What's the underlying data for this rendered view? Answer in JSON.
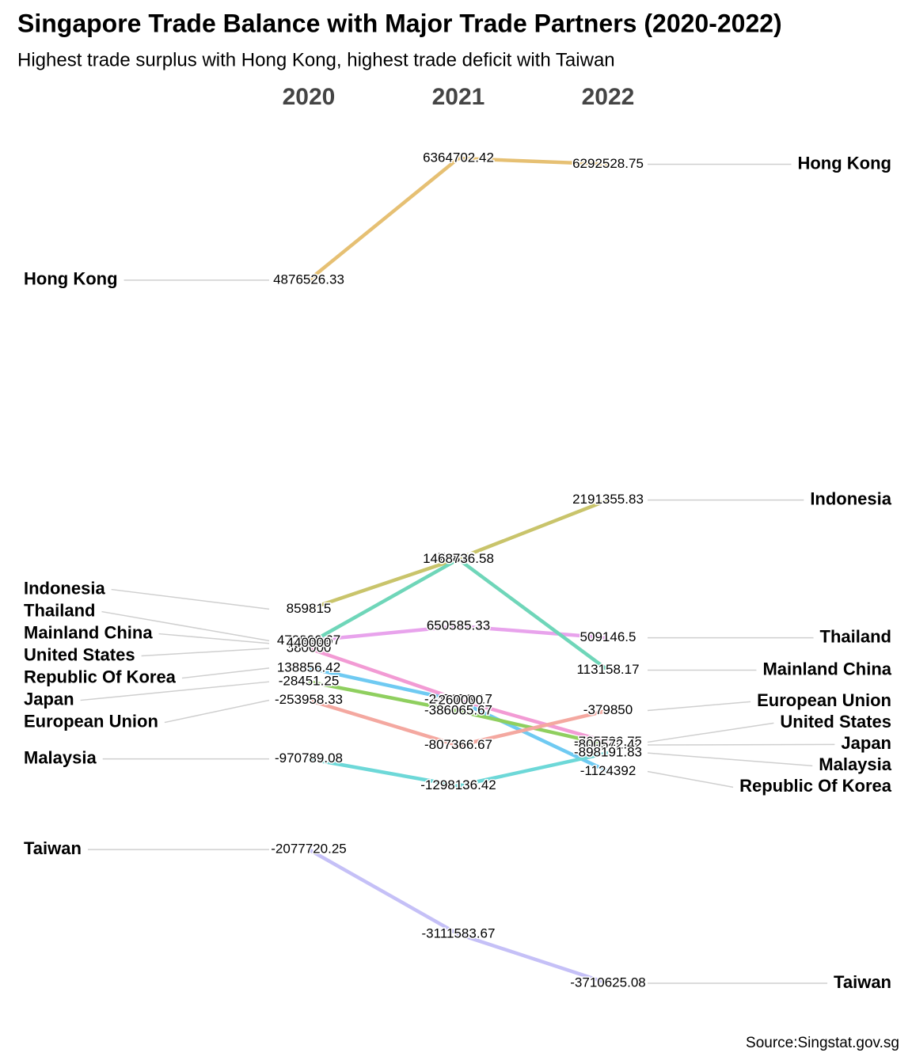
{
  "chart_data": {
    "type": "slope",
    "title": "Singapore Trade Balance with Major Trade Partners (2020-2022)",
    "subtitle": "Highest trade surplus with Hong Kong, highest trade deficit with Taiwan",
    "source": "Source:Singstat.gov.sg",
    "x": [
      "2020",
      "2021",
      "2022"
    ],
    "series": [
      {
        "name": "Hong Kong",
        "color": "#e6c073",
        "values": [
          4876526.33,
          6364702.42,
          6292528.75
        ]
      },
      {
        "name": "Indonesia",
        "color": "#c9c46b",
        "values": [
          859815,
          1476818.58,
          2191355.83
        ]
      },
      {
        "name": "Thailand",
        "color": "#e8a3ec",
        "values": [
          472866.67,
          650585.33,
          509146.5
        ]
      },
      {
        "name": "United States",
        "color": "#f29bd4",
        "values": [
          380000,
          -247078.17,
          -765726.75
        ]
      },
      {
        "name": "Mainland China",
        "color": "#6fd6b9",
        "values": [
          440000,
          1468736.58,
          113158.17
        ]
      },
      {
        "name": "Republic Of Korea",
        "color": "#6fcaf2",
        "values": [
          138856.42,
          -260000,
          -1124392
        ]
      },
      {
        "name": "Japan",
        "color": "#8fcf5f",
        "values": [
          -28451.25,
          -386065.67,
          -800572.42
        ]
      },
      {
        "name": "European Union",
        "color": "#f4a8a0",
        "values": [
          -253958.33,
          -807366.67,
          -379850
        ]
      },
      {
        "name": "Malaysia",
        "color": "#6dd8d8",
        "values": [
          -970789.08,
          -1298136.42,
          -898191.83
        ]
      },
      {
        "name": "Taiwan",
        "color": "#c5c0f7",
        "values": [
          -2077720.25,
          -3111583.67,
          -3710625.08
        ]
      }
    ]
  }
}
